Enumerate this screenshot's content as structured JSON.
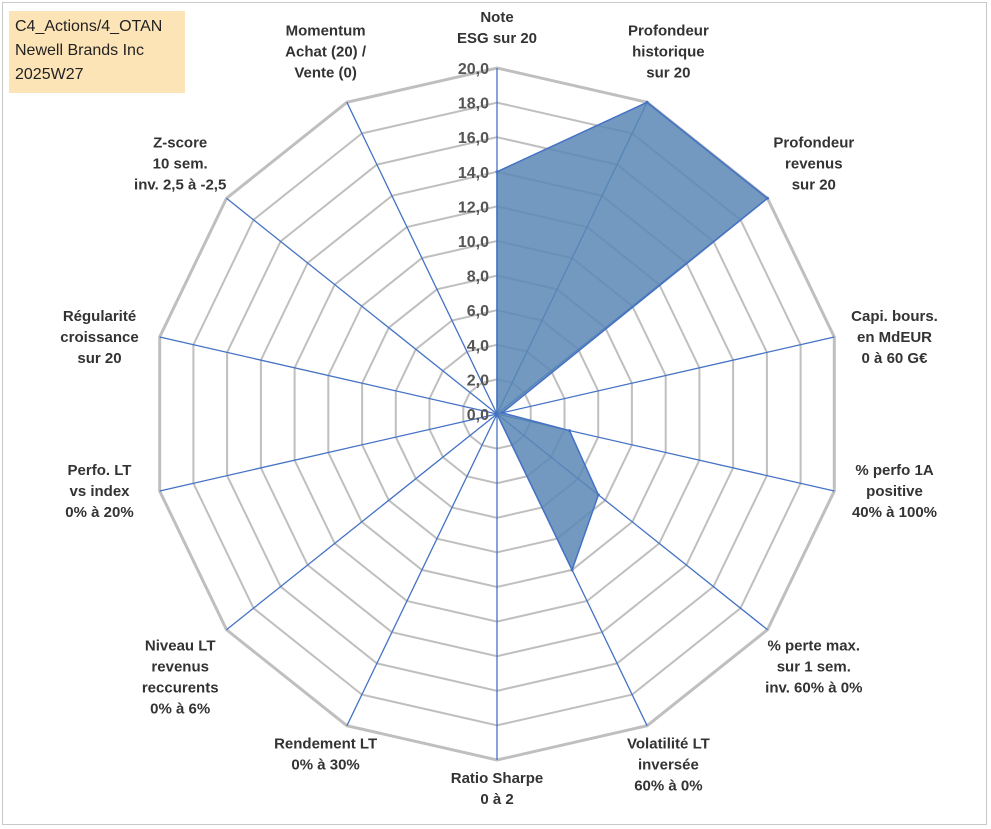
{
  "info_box": {
    "line1": "C4_Actions/4_OTAN",
    "line2": "Newell Brands Inc",
    "line3": "2025W27"
  },
  "colors": {
    "fill": "#5b87b5",
    "stroke": "#4472c4",
    "ring": "#bfbfbf",
    "info_bg": "#fce4b6"
  },
  "chart_data": {
    "type": "radar",
    "rmax": 20,
    "tick_step": 2,
    "tick_labels": [
      "0,0",
      "2,0",
      "4,0",
      "6,0",
      "8,0",
      "10,0",
      "12,0",
      "14,0",
      "16,0",
      "18,0",
      "20,0"
    ],
    "axes": [
      {
        "label": [
          "Note",
          "ESG sur 20"
        ],
        "value": 14.0
      },
      {
        "label": [
          "Profondeur",
          "historique",
          "sur 20"
        ],
        "value": 20.0
      },
      {
        "label": [
          "Profondeur",
          "revenus",
          "sur 20"
        ],
        "value": 20.0
      },
      {
        "label": [
          "Capi. bours.",
          "en MdEUR",
          "0 à 60 G€"
        ],
        "value": 0.3
      },
      {
        "label": [
          "% perfo 1A",
          "positive",
          "40% à 100%"
        ],
        "value": 4.3
      },
      {
        "label": [
          "% perte max.",
          "sur 1 sem.",
          "inv. 60% à 0%"
        ],
        "value": 7.5
      },
      {
        "label": [
          "Volatilité LT",
          "inversée",
          "60% à 0%"
        ],
        "value": 10.0
      },
      {
        "label": [
          "Ratio Sharpe",
          "0 à 2"
        ],
        "value": 0.0
      },
      {
        "label": [
          "Rendement LT",
          "0% à 30%"
        ],
        "value": 0.0
      },
      {
        "label": [
          "Niveau LT",
          "revenus",
          "reccurents",
          "0% à 6%"
        ],
        "value": 0.0
      },
      {
        "label": [
          "Perfo. LT",
          "vs index",
          "0% à 20%"
        ],
        "value": 0.0
      },
      {
        "label": [
          "Régularité",
          "croissance",
          "sur 20"
        ],
        "value": 0.0
      },
      {
        "label": [
          "Z-score",
          "10 sem.",
          "inv. 2,5 à -2,5"
        ],
        "value": 0.0
      },
      {
        "label": [
          "Momentum",
          "Achat (20) /",
          "Vente (0)"
        ],
        "value": 0.0
      }
    ]
  }
}
